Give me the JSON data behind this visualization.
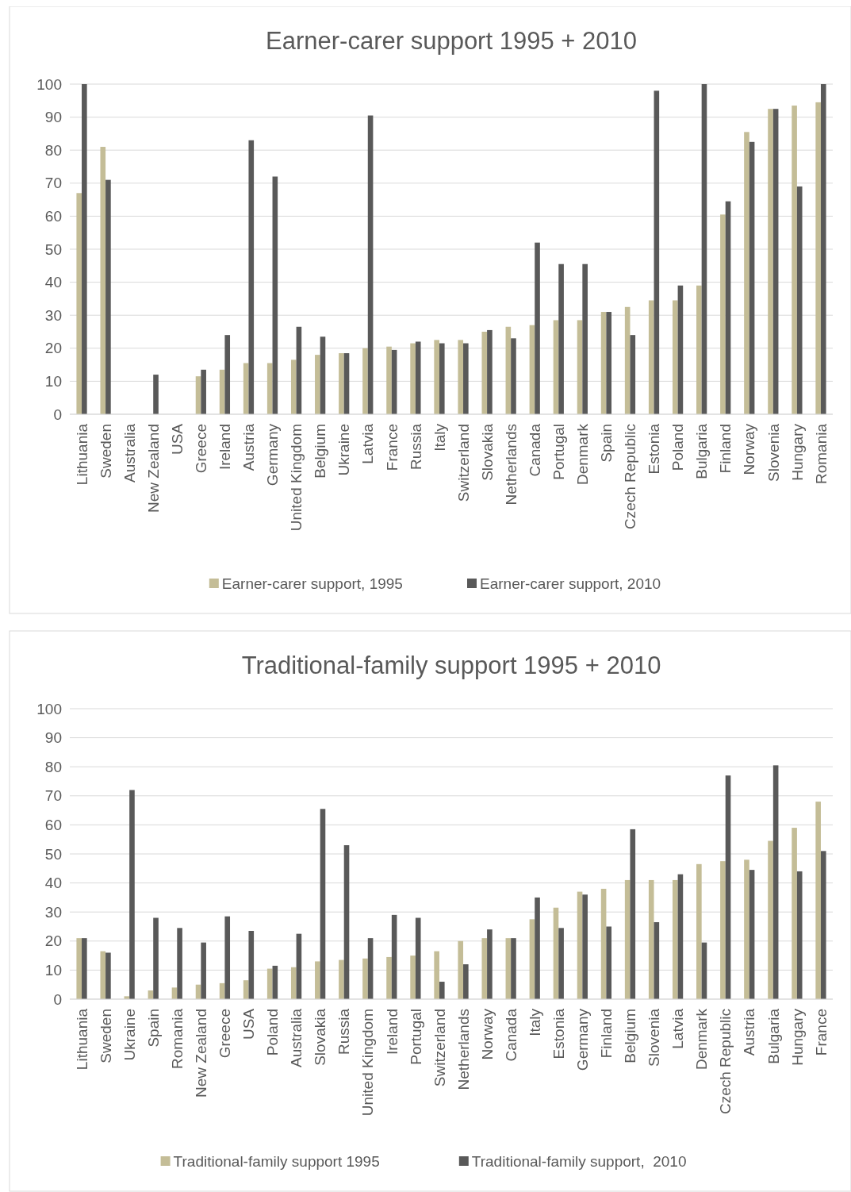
{
  "chart_data": [
    {
      "type": "bar",
      "title": "Earner-carer support 1995 + 2010",
      "categories": [
        "Lithuania",
        "Sweden",
        "Australia",
        "New Zealand",
        "USA",
        "Greece",
        "Ireland",
        "Austria",
        "Germany",
        "United Kingdom",
        "Belgium",
        "Ukraine",
        "Latvia",
        "France",
        "Russia",
        "Italy",
        "Switzerland",
        "Slovakia",
        "Netherlands",
        "Canada",
        "Portugal",
        "Denmark",
        "Spain",
        "Czech Republic",
        "Estonia",
        "Poland",
        "Bulgaria",
        "Finland",
        "Norway",
        "Slovenia",
        "Hungary",
        "Romania"
      ],
      "series": [
        {
          "name": "Earner-carer support, 1995",
          "color": "#c4bd97",
          "values": [
            67,
            81,
            null,
            null,
            null,
            11.5,
            13.5,
            15.5,
            15.5,
            16.5,
            18,
            18.5,
            20,
            20.5,
            21.5,
            22.5,
            22.5,
            25,
            26.5,
            27,
            28.5,
            28.5,
            31,
            32.5,
            34.5,
            34.5,
            39,
            60.5,
            85.5,
            92.5,
            93.5,
            94.5
          ]
        },
        {
          "name": "Earner-carer support, 2010",
          "color": "#595959",
          "values": [
            100,
            71,
            null,
            12,
            null,
            13.5,
            24,
            83,
            72,
            26.5,
            23.5,
            18.5,
            90.5,
            19.5,
            22,
            21.5,
            21.5,
            25.5,
            23,
            52,
            45.5,
            45.5,
            31,
            24,
            98,
            39,
            100,
            64.5,
            82.5,
            92.5,
            69,
            100
          ]
        }
      ],
      "ylim": [
        0,
        100
      ],
      "yticks": [
        0,
        10,
        20,
        30,
        40,
        50,
        60,
        70,
        80,
        90,
        100
      ],
      "grid": "y",
      "legend": "bottom"
    },
    {
      "type": "bar",
      "title": "Traditional-family support 1995 + 2010",
      "categories": [
        "Lithuania",
        "Sweden",
        "Ukraine",
        "Spain",
        "Romania",
        "New Zealand",
        "Greece",
        "USA",
        "Poland",
        "Australia",
        "Slovakia",
        "Russia",
        "United Kingdom",
        "Ireland",
        "Portugal",
        "Switzerland",
        "Netherlands",
        "Norway",
        "Canada",
        "Italy",
        "Estonia",
        "Germany",
        "Finland",
        "Belgium",
        "Slovenia",
        "Latvia",
        "Denmark",
        "Czech Republic",
        "Austria",
        "Bulgaria",
        "Hungary",
        "France"
      ],
      "series": [
        {
          "name": "Traditional-family support 1995",
          "color": "#c4bd97",
          "values": [
            21,
            16.5,
            1,
            3,
            4,
            5,
            5.5,
            6.5,
            10.5,
            11,
            13,
            13.5,
            14,
            14.5,
            15,
            16.5,
            20,
            21,
            21,
            27.5,
            31.5,
            37,
            38,
            41,
            41,
            41,
            46.5,
            47.5,
            48,
            54.5,
            59,
            68
          ]
        },
        {
          "name": "Traditional-family support,  2010",
          "color": "#595959",
          "values": [
            21,
            16,
            72,
            28,
            24.5,
            19.5,
            28.5,
            23.5,
            11.5,
            22.5,
            65.5,
            53,
            21,
            29,
            28,
            6,
            12,
            24,
            21,
            35,
            24.5,
            36,
            25,
            58.5,
            26.5,
            43,
            19.5,
            77,
            44.5,
            80.5,
            44,
            51
          ]
        }
      ],
      "ylim": [
        0,
        100
      ],
      "yticks": [
        0,
        10,
        20,
        30,
        40,
        50,
        60,
        70,
        80,
        90,
        100
      ],
      "grid": "y",
      "legend": "bottom"
    }
  ]
}
